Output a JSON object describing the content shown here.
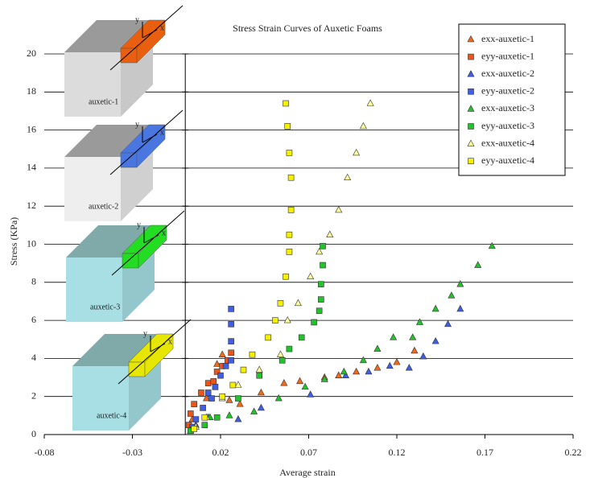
{
  "chart_data": {
    "type": "scatter",
    "title": "Stress Strain Curves of Auxetic Foams",
    "x_label": "Average strain",
    "y_label": "Stress (KPa)",
    "xlim": [
      -0.08,
      0.22
    ],
    "xticks": [
      -0.08,
      -0.03,
      0.02,
      0.07,
      0.12,
      0.17,
      0.22
    ],
    "ylim": [
      0,
      20
    ],
    "yticks": [
      0,
      2,
      4,
      6,
      8,
      10,
      12,
      14,
      16,
      18,
      20
    ],
    "grid": true,
    "legend": "upper right",
    "annotations": [
      "auxetic-1",
      "auxetic-2",
      "auxetic-3",
      "auxetic-4"
    ],
    "inset_axis_labels": [
      "x",
      "y"
    ],
    "series": [
      {
        "name": "exx-auxetic-1",
        "color": "#f06a18",
        "marker": "triangle",
        "x": [
          0.004,
          0.012,
          0.018,
          0.021,
          0.025,
          0.031,
          0.043,
          0.056,
          0.065,
          0.079,
          0.087,
          0.097,
          0.109,
          0.12,
          0.13
        ],
        "values": [
          0.8,
          1.9,
          3.7,
          4.2,
          1.8,
          1.6,
          2.2,
          2.7,
          2.8,
          3.0,
          3.1,
          3.3,
          3.5,
          3.8,
          4.4
        ]
      },
      {
        "name": "eyy-auxetic-1",
        "color": "#e8561c",
        "marker": "square",
        "x": [
          0.002,
          0.003,
          0.005,
          0.009,
          0.013,
          0.016,
          0.018,
          0.021,
          0.024,
          0.026
        ],
        "values": [
          0.5,
          1.1,
          1.6,
          2.2,
          2.7,
          2.8,
          3.3,
          3.6,
          3.9,
          4.3
        ]
      },
      {
        "name": "exx-auxetic-2",
        "color": "#3f5fe0",
        "marker": "triangle",
        "x": [
          0.006,
          0.013,
          0.03,
          0.043,
          0.071,
          0.091,
          0.104,
          0.116,
          0.127,
          0.135,
          0.142,
          0.149,
          0.156
        ],
        "values": [
          0.5,
          0.9,
          0.8,
          1.4,
          2.1,
          3.1,
          3.3,
          3.6,
          3.5,
          4.1,
          4.9,
          5.8,
          6.6
        ]
      },
      {
        "name": "eyy-auxetic-2",
        "color": "#3f5fe0",
        "marker": "square",
        "x": [
          0.004,
          0.006,
          0.01,
          0.013,
          0.015,
          0.017,
          0.02,
          0.023,
          0.026,
          0.026,
          0.026,
          0.026
        ],
        "values": [
          0.4,
          0.8,
          1.4,
          2.2,
          1.9,
          2.5,
          3.1,
          3.6,
          3.9,
          4.9,
          5.8,
          6.6
        ]
      },
      {
        "name": "exx-auxetic-3",
        "color": "#22c22a",
        "marker": "triangle",
        "x": [
          0.003,
          0.014,
          0.025,
          0.039,
          0.053,
          0.068,
          0.079,
          0.09,
          0.101,
          0.109,
          0.118,
          0.129,
          0.133,
          0.142,
          0.151,
          0.156,
          0.166,
          0.174
        ],
        "values": [
          0.2,
          0.9,
          1.0,
          1.2,
          1.9,
          2.5,
          2.9,
          3.3,
          3.9,
          4.5,
          5.1,
          5.1,
          5.9,
          6.6,
          7.3,
          7.9,
          8.9,
          9.9
        ]
      },
      {
        "name": "eyy-auxetic-3",
        "color": "#22c22a",
        "marker": "square",
        "x": [
          0.003,
          0.011,
          0.018,
          0.03,
          0.042,
          0.055,
          0.059,
          0.066,
          0.073,
          0.076,
          0.077,
          0.077,
          0.078,
          0.078
        ],
        "values": [
          0.2,
          0.5,
          0.9,
          1.9,
          3.1,
          3.9,
          4.5,
          5.1,
          5.9,
          6.5,
          7.1,
          7.9,
          8.9,
          9.9
        ]
      },
      {
        "name": "exx-auxetic-4",
        "color": "#ffff99",
        "marker": "triangle",
        "x": [
          0.006,
          0.012,
          0.021,
          0.03,
          0.042,
          0.054,
          0.058,
          0.064,
          0.071,
          0.076,
          0.082,
          0.087,
          0.092,
          0.097,
          0.101,
          0.105
        ],
        "values": [
          0.4,
          0.9,
          1.9,
          2.6,
          3.4,
          4.2,
          6.0,
          6.9,
          8.3,
          9.6,
          10.5,
          11.8,
          13.5,
          14.8,
          16.2,
          17.4
        ]
      },
      {
        "name": "eyy-auxetic-4",
        "color": "#f4f000",
        "marker": "square",
        "x": [
          0.005,
          0.011,
          0.021,
          0.027,
          0.033,
          0.038,
          0.047,
          0.051,
          0.054,
          0.057,
          0.059,
          0.059,
          0.06,
          0.06,
          0.059,
          0.058,
          0.057
        ],
        "values": [
          0.3,
          0.9,
          2.0,
          2.6,
          3.4,
          4.2,
          5.1,
          6.0,
          6.9,
          8.3,
          9.6,
          10.5,
          11.8,
          13.5,
          14.8,
          16.2,
          17.4
        ]
      }
    ]
  }
}
